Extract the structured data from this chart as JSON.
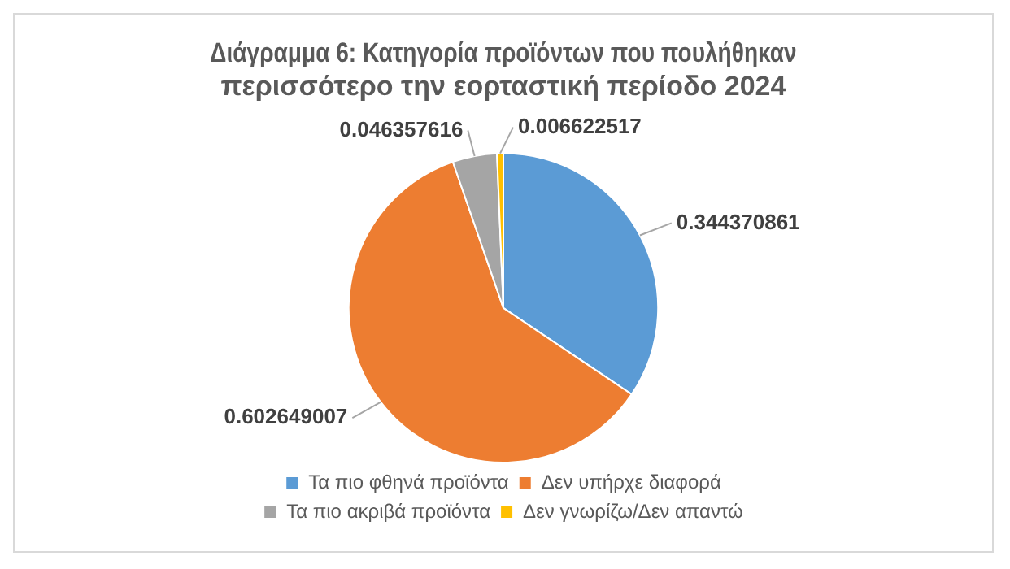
{
  "chart_data": {
    "type": "pie",
    "title": "Διάγραμμα 6: Κατηγορία προϊόντων που πουλήθηκαν περισσότερο την εορταστική περίοδο 2024",
    "categories": [
      "Τα πιο φθηνά προϊόντα",
      "Δεν υπήρχε διαφορά",
      "Τα πιο ακριβά προϊόντα",
      "Δεν γνωρίζω/Δεν απαντώ"
    ],
    "values": [
      0.344370861,
      0.602649007,
      0.046357616,
      0.006622517
    ],
    "colors": [
      "#5b9bd5",
      "#ed7d31",
      "#a5a5a5",
      "#ffc000"
    ],
    "data_labels": true,
    "legend": "bottom"
  }
}
